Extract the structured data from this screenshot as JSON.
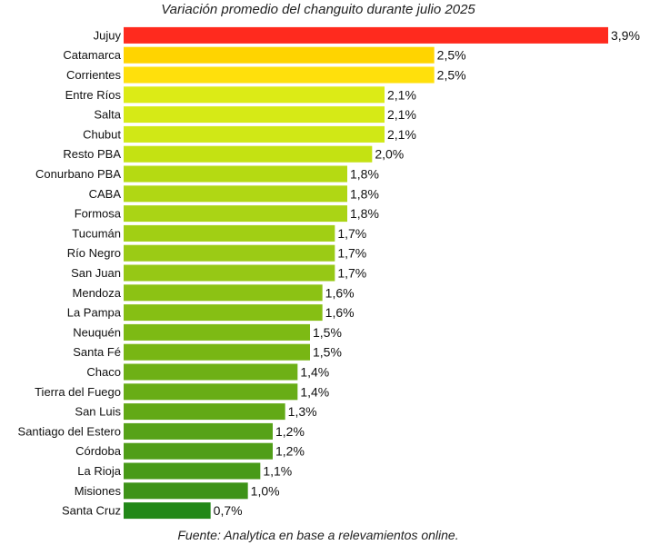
{
  "chart_data": {
    "type": "bar",
    "orientation": "horizontal",
    "title": "Variación promedio del changuito durante julio 2025",
    "source": "Fuente: Analytica en base a relevamientos online.",
    "xlim": [
      0,
      3.9
    ],
    "grid": false,
    "legend": "none",
    "categories": [
      "Jujuy",
      "Catamarca",
      "Corrientes",
      "Entre Ríos",
      "Salta",
      "Chubut",
      "Resto PBA",
      "Conurbano PBA",
      "CABA",
      "Formosa",
      "Tucumán",
      "Río Negro",
      "San Juan",
      "Mendoza",
      "La Pampa",
      "Neuquén",
      "Santa Fé",
      "Chaco",
      "Tierra del Fuego",
      "San Luis",
      "Santiago del Estero",
      "Córdoba",
      "La Rioja",
      "Misiones",
      "Santa Cruz"
    ],
    "values": [
      3.9,
      2.5,
      2.5,
      2.1,
      2.1,
      2.1,
      2.0,
      1.8,
      1.8,
      1.8,
      1.7,
      1.7,
      1.7,
      1.6,
      1.6,
      1.5,
      1.5,
      1.4,
      1.4,
      1.3,
      1.2,
      1.2,
      1.1,
      1.0,
      0.7
    ],
    "value_labels": [
      "3,9%",
      "2,5%",
      "2,5%",
      "2,1%",
      "2,1%",
      "2,1%",
      "2,0%",
      "1,8%",
      "1,8%",
      "1,8%",
      "1,7%",
      "1,7%",
      "1,7%",
      "1,6%",
      "1,6%",
      "1,5%",
      "1,5%",
      "1,4%",
      "1,4%",
      "1,3%",
      "1,2%",
      "1,2%",
      "1,1%",
      "1,0%",
      "0,7%"
    ],
    "colors": [
      "#ff2a1e",
      "#ffd400",
      "#ffe00c",
      "#dceb16",
      "#d6ea16",
      "#d0e816",
      "#c4e212",
      "#b5da12",
      "#b0d714",
      "#aad415",
      "#a1cf14",
      "#9bcb15",
      "#96c815",
      "#8cc214",
      "#86bf14",
      "#7dba14",
      "#78b614",
      "#6eb016",
      "#68ad16",
      "#62a916",
      "#56a218",
      "#509e18",
      "#489a18",
      "#3e9318",
      "#228818"
    ]
  }
}
